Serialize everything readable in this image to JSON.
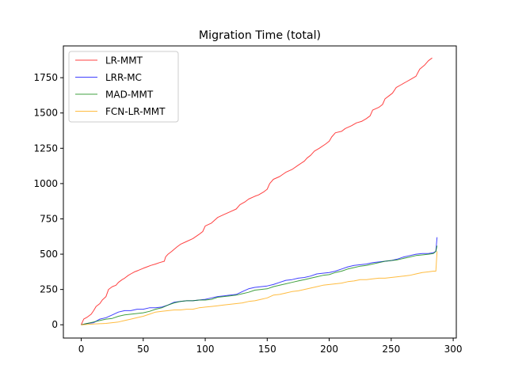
{
  "chart_data": {
    "type": "line",
    "title": "Migration Time (total)",
    "xlabel": "",
    "ylabel": "",
    "xlim": [
      -14.4,
      302.5
    ],
    "ylim": [
      -94,
      1975
    ],
    "xticks": [
      0,
      50,
      100,
      150,
      200,
      250,
      300
    ],
    "yticks": [
      0,
      250,
      500,
      750,
      1000,
      1250,
      1500,
      1750
    ],
    "grid": false,
    "legend_position": "top-left",
    "series": [
      {
        "name": "LR-MMT",
        "color": "#ff0000",
        "points": [
          [
            0,
            0
          ],
          [
            2,
            40
          ],
          [
            5,
            55
          ],
          [
            8,
            75
          ],
          [
            10,
            100
          ],
          [
            12,
            130
          ],
          [
            15,
            150
          ],
          [
            17,
            175
          ],
          [
            20,
            200
          ],
          [
            22,
            250
          ],
          [
            25,
            270
          ],
          [
            28,
            280
          ],
          [
            30,
            300
          ],
          [
            33,
            320
          ],
          [
            35,
            330
          ],
          [
            38,
            350
          ],
          [
            40,
            360
          ],
          [
            43,
            375
          ],
          [
            46,
            385
          ],
          [
            50,
            400
          ],
          [
            53,
            410
          ],
          [
            56,
            420
          ],
          [
            60,
            430
          ],
          [
            63,
            440
          ],
          [
            67,
            450
          ],
          [
            68,
            480
          ],
          [
            70,
            500
          ],
          [
            73,
            520
          ],
          [
            77,
            550
          ],
          [
            80,
            570
          ],
          [
            85,
            590
          ],
          [
            90,
            610
          ],
          [
            95,
            640
          ],
          [
            98,
            660
          ],
          [
            100,
            700
          ],
          [
            105,
            720
          ],
          [
            110,
            760
          ],
          [
            115,
            780
          ],
          [
            120,
            800
          ],
          [
            125,
            820
          ],
          [
            128,
            850
          ],
          [
            132,
            870
          ],
          [
            135,
            890
          ],
          [
            140,
            910
          ],
          [
            143,
            920
          ],
          [
            147,
            940
          ],
          [
            150,
            960
          ],
          [
            152,
            1000
          ],
          [
            155,
            1030
          ],
          [
            160,
            1050
          ],
          [
            165,
            1080
          ],
          [
            170,
            1100
          ],
          [
            175,
            1130
          ],
          [
            180,
            1160
          ],
          [
            182,
            1180
          ],
          [
            185,
            1200
          ],
          [
            188,
            1230
          ],
          [
            192,
            1250
          ],
          [
            197,
            1280
          ],
          [
            200,
            1300
          ],
          [
            202,
            1330
          ],
          [
            205,
            1360
          ],
          [
            210,
            1370
          ],
          [
            213,
            1390
          ],
          [
            218,
            1410
          ],
          [
            222,
            1430
          ],
          [
            226,
            1440
          ],
          [
            230,
            1460
          ],
          [
            233,
            1480
          ],
          [
            235,
            1520
          ],
          [
            240,
            1540
          ],
          [
            243,
            1560
          ],
          [
            245,
            1600
          ],
          [
            248,
            1620
          ],
          [
            251,
            1640
          ],
          [
            254,
            1680
          ],
          [
            258,
            1700
          ],
          [
            262,
            1720
          ],
          [
            266,
            1740
          ],
          [
            270,
            1760
          ],
          [
            273,
            1810
          ],
          [
            277,
            1840
          ],
          [
            280,
            1870
          ],
          [
            283,
            1890
          ]
        ]
      },
      {
        "name": "LRR-MC",
        "color": "#0000ff",
        "points": [
          [
            0,
            0
          ],
          [
            5,
            10
          ],
          [
            10,
            15
          ],
          [
            15,
            40
          ],
          [
            20,
            50
          ],
          [
            25,
            70
          ],
          [
            30,
            90
          ],
          [
            35,
            100
          ],
          [
            40,
            100
          ],
          [
            45,
            110
          ],
          [
            50,
            110
          ],
          [
            55,
            120
          ],
          [
            60,
            120
          ],
          [
            65,
            125
          ],
          [
            70,
            140
          ],
          [
            75,
            160
          ],
          [
            80,
            165
          ],
          [
            85,
            170
          ],
          [
            90,
            170
          ],
          [
            95,
            175
          ],
          [
            100,
            180
          ],
          [
            105,
            190
          ],
          [
            110,
            200
          ],
          [
            115,
            205
          ],
          [
            120,
            210
          ],
          [
            125,
            215
          ],
          [
            130,
            235
          ],
          [
            135,
            255
          ],
          [
            140,
            265
          ],
          [
            145,
            270
          ],
          [
            150,
            275
          ],
          [
            155,
            285
          ],
          [
            160,
            300
          ],
          [
            165,
            315
          ],
          [
            170,
            320
          ],
          [
            175,
            330
          ],
          [
            180,
            335
          ],
          [
            185,
            345
          ],
          [
            190,
            360
          ],
          [
            195,
            365
          ],
          [
            200,
            370
          ],
          [
            205,
            380
          ],
          [
            210,
            395
          ],
          [
            215,
            410
          ],
          [
            220,
            420
          ],
          [
            225,
            425
          ],
          [
            230,
            430
          ],
          [
            235,
            440
          ],
          [
            240,
            445
          ],
          [
            245,
            450
          ],
          [
            250,
            455
          ],
          [
            255,
            465
          ],
          [
            260,
            480
          ],
          [
            265,
            490
          ],
          [
            270,
            500
          ],
          [
            275,
            505
          ],
          [
            280,
            505
          ],
          [
            284,
            510
          ],
          [
            286,
            520
          ],
          [
            287,
            620
          ]
        ]
      },
      {
        "name": "MAD-MMT",
        "color": "#008000",
        "points": [
          [
            0,
            0
          ],
          [
            5,
            10
          ],
          [
            10,
            20
          ],
          [
            15,
            30
          ],
          [
            20,
            40
          ],
          [
            25,
            45
          ],
          [
            30,
            60
          ],
          [
            35,
            70
          ],
          [
            40,
            75
          ],
          [
            45,
            80
          ],
          [
            50,
            85
          ],
          [
            55,
            95
          ],
          [
            60,
            110
          ],
          [
            65,
            120
          ],
          [
            70,
            140
          ],
          [
            75,
            155
          ],
          [
            80,
            165
          ],
          [
            85,
            170
          ],
          [
            90,
            170
          ],
          [
            95,
            175
          ],
          [
            100,
            175
          ],
          [
            105,
            180
          ],
          [
            110,
            195
          ],
          [
            115,
            200
          ],
          [
            120,
            205
          ],
          [
            125,
            210
          ],
          [
            130,
            220
          ],
          [
            135,
            230
          ],
          [
            140,
            245
          ],
          [
            145,
            250
          ],
          [
            150,
            255
          ],
          [
            155,
            270
          ],
          [
            160,
            280
          ],
          [
            165,
            290
          ],
          [
            170,
            300
          ],
          [
            175,
            310
          ],
          [
            180,
            320
          ],
          [
            185,
            330
          ],
          [
            190,
            340
          ],
          [
            195,
            350
          ],
          [
            200,
            355
          ],
          [
            205,
            370
          ],
          [
            210,
            380
          ],
          [
            215,
            395
          ],
          [
            220,
            405
          ],
          [
            225,
            415
          ],
          [
            230,
            420
          ],
          [
            235,
            430
          ],
          [
            240,
            440
          ],
          [
            245,
            450
          ],
          [
            250,
            455
          ],
          [
            255,
            460
          ],
          [
            260,
            470
          ],
          [
            265,
            480
          ],
          [
            270,
            490
          ],
          [
            275,
            495
          ],
          [
            280,
            500
          ],
          [
            284,
            505
          ],
          [
            286,
            520
          ],
          [
            287,
            560
          ]
        ]
      },
      {
        "name": "FCN-LR-MMT",
        "color": "#ffa500",
        "points": [
          [
            0,
            0
          ],
          [
            10,
            5
          ],
          [
            20,
            10
          ],
          [
            30,
            20
          ],
          [
            35,
            30
          ],
          [
            40,
            40
          ],
          [
            45,
            50
          ],
          [
            50,
            60
          ],
          [
            55,
            75
          ],
          [
            60,
            90
          ],
          [
            65,
            95
          ],
          [
            70,
            100
          ],
          [
            75,
            105
          ],
          [
            80,
            105
          ],
          [
            85,
            110
          ],
          [
            90,
            110
          ],
          [
            95,
            120
          ],
          [
            100,
            125
          ],
          [
            105,
            130
          ],
          [
            110,
            135
          ],
          [
            115,
            140
          ],
          [
            120,
            145
          ],
          [
            125,
            150
          ],
          [
            130,
            155
          ],
          [
            135,
            165
          ],
          [
            140,
            170
          ],
          [
            145,
            180
          ],
          [
            150,
            190
          ],
          [
            155,
            210
          ],
          [
            160,
            215
          ],
          [
            165,
            225
          ],
          [
            170,
            235
          ],
          [
            175,
            240
          ],
          [
            180,
            250
          ],
          [
            185,
            260
          ],
          [
            190,
            270
          ],
          [
            195,
            280
          ],
          [
            200,
            285
          ],
          [
            205,
            290
          ],
          [
            210,
            295
          ],
          [
            215,
            305
          ],
          [
            220,
            310
          ],
          [
            225,
            320
          ],
          [
            230,
            320
          ],
          [
            235,
            325
          ],
          [
            240,
            330
          ],
          [
            245,
            330
          ],
          [
            250,
            335
          ],
          [
            255,
            340
          ],
          [
            260,
            345
          ],
          [
            265,
            350
          ],
          [
            270,
            360
          ],
          [
            275,
            370
          ],
          [
            280,
            375
          ],
          [
            284,
            380
          ],
          [
            286,
            380
          ],
          [
            287,
            520
          ]
        ]
      }
    ]
  }
}
